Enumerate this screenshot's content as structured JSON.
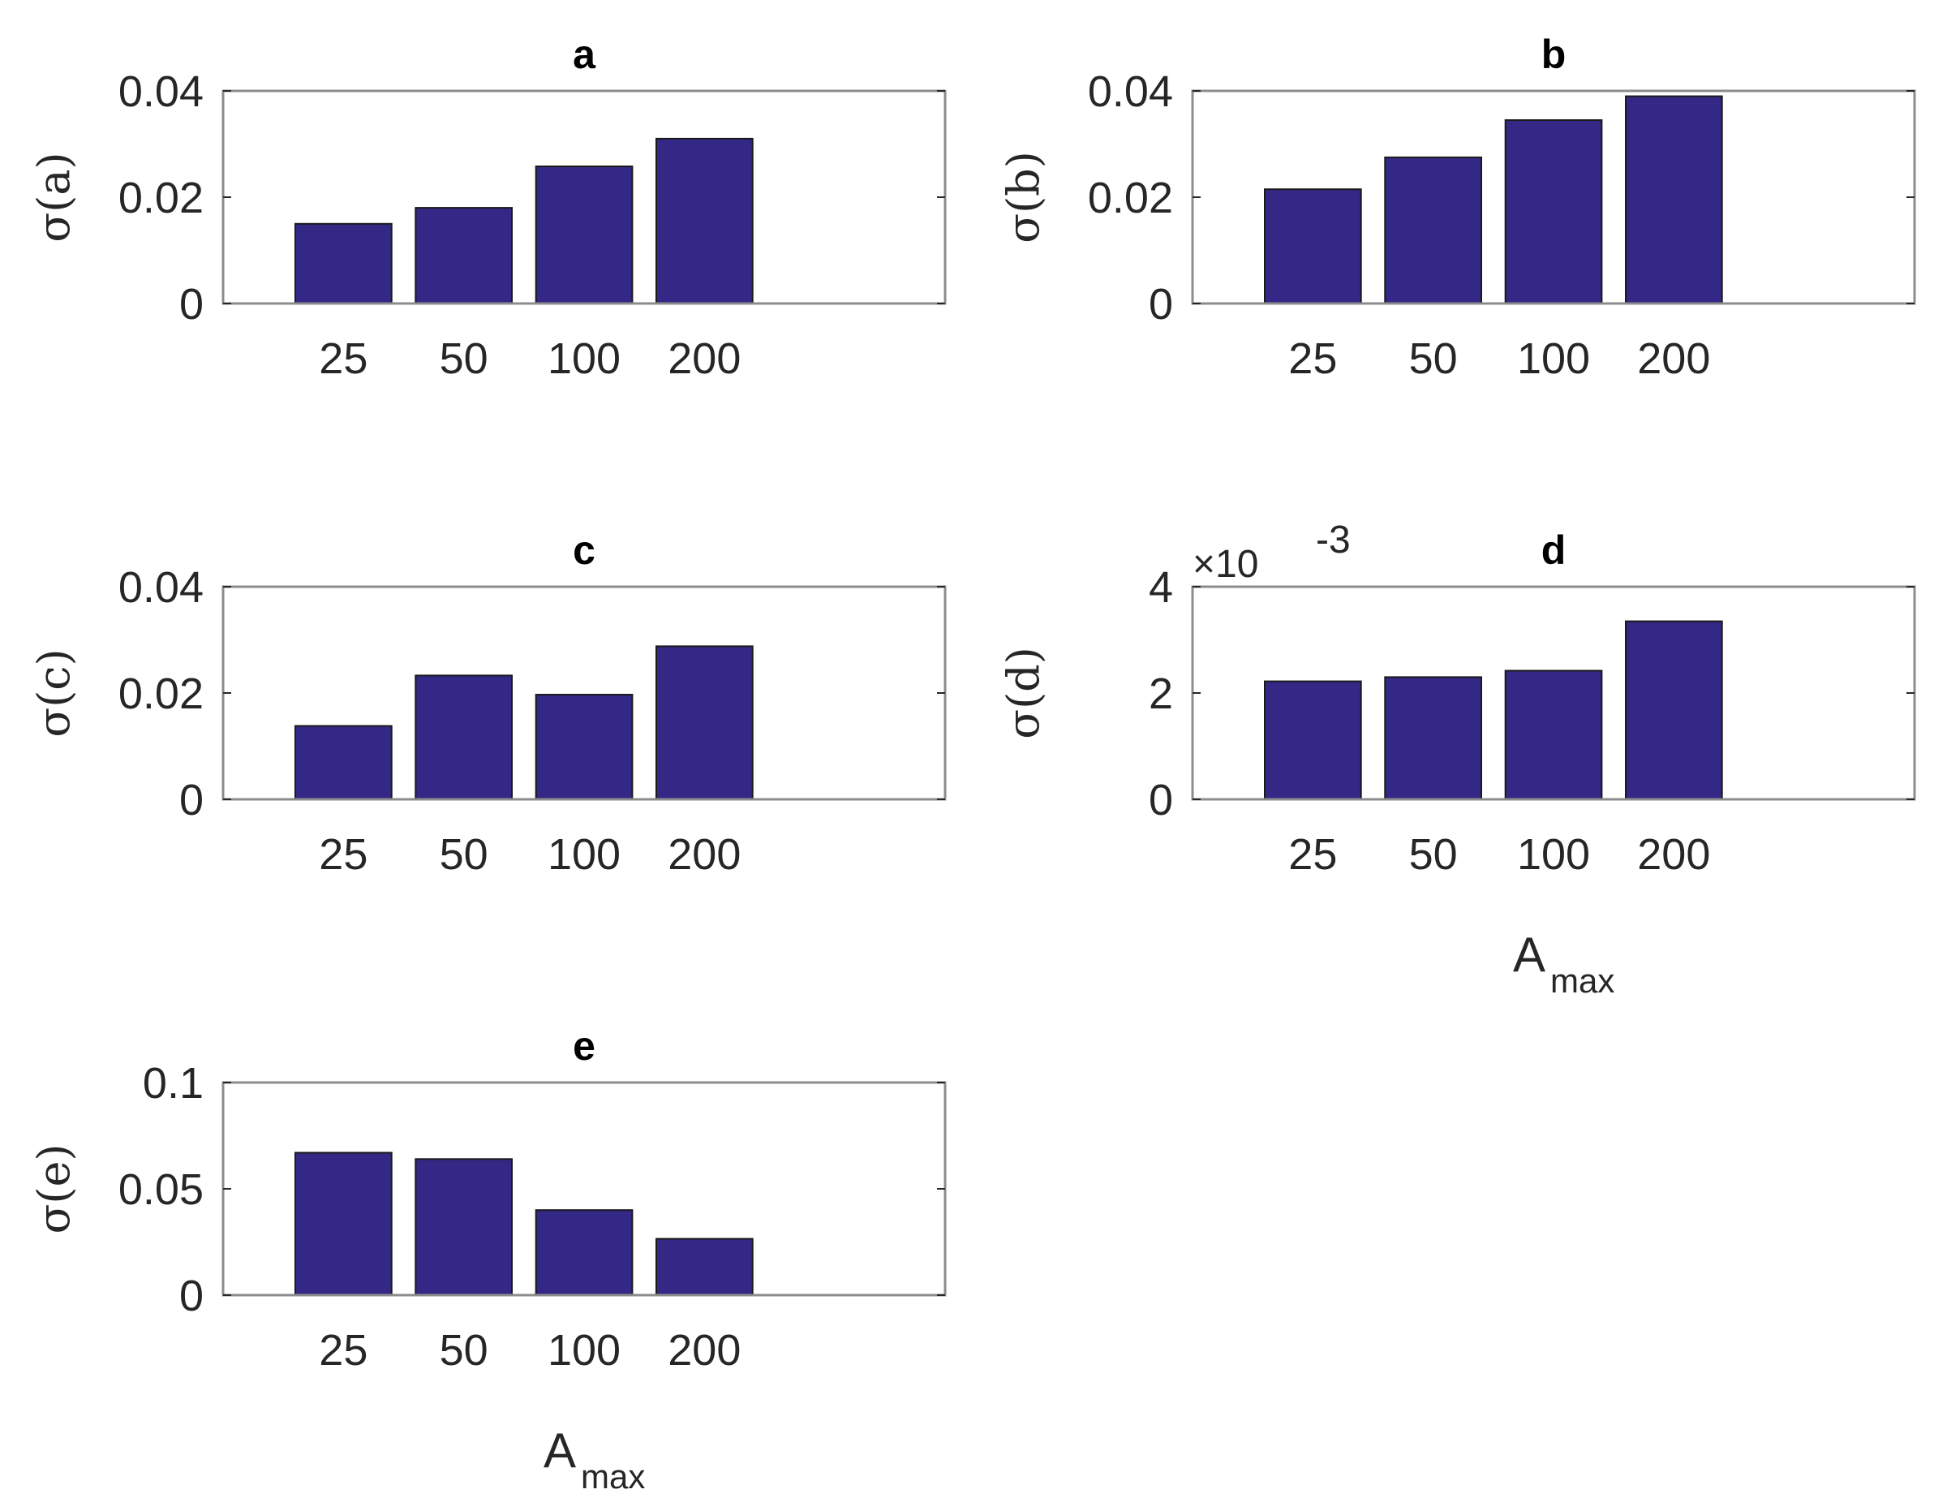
{
  "chart_data": [
    {
      "type": "bar",
      "title": "a",
      "ylabel": "σ(a)",
      "xlabel": "",
      "categories": [
        "25",
        "50",
        "100",
        "200"
      ],
      "values": [
        0.015,
        0.018,
        0.0258,
        0.031
      ],
      "ylim": [
        0,
        0.04
      ],
      "yticks": [
        0,
        0.02,
        0.04
      ],
      "ytick_labels": [
        "0",
        "0.02",
        "0.04"
      ],
      "multiplier": ""
    },
    {
      "type": "bar",
      "title": "b",
      "ylabel": "σ(b)",
      "xlabel": "",
      "categories": [
        "25",
        "50",
        "100",
        "200"
      ],
      "values": [
        0.0215,
        0.0275,
        0.0345,
        0.039
      ],
      "ylim": [
        0,
        0.04
      ],
      "yticks": [
        0,
        0.02,
        0.04
      ],
      "ytick_labels": [
        "0",
        "0.02",
        "0.04"
      ],
      "multiplier": ""
    },
    {
      "type": "bar",
      "title": "c",
      "ylabel": "σ(c)",
      "xlabel": "",
      "categories": [
        "25",
        "50",
        "100",
        "200"
      ],
      "values": [
        0.0138,
        0.0233,
        0.0197,
        0.0288
      ],
      "ylim": [
        0,
        0.04
      ],
      "yticks": [
        0,
        0.02,
        0.04
      ],
      "ytick_labels": [
        "0",
        "0.02",
        "0.04"
      ],
      "multiplier": ""
    },
    {
      "type": "bar",
      "title": "d",
      "ylabel": "σ(d)",
      "xlabel": "A",
      "xlabel_sub": "max",
      "categories": [
        "25",
        "50",
        "100",
        "200"
      ],
      "values": [
        2.22,
        2.3,
        2.42,
        3.35
      ],
      "ylim": [
        0,
        4
      ],
      "yticks": [
        0,
        2,
        4
      ],
      "ytick_labels": [
        "0",
        "2",
        "4"
      ],
      "multiplier": "×10",
      "multiplier_exp": "-3"
    },
    {
      "type": "bar",
      "title": "e",
      "ylabel": "σ(e)",
      "xlabel": "A",
      "xlabel_sub": "max",
      "categories": [
        "25",
        "50",
        "100",
        "200"
      ],
      "values": [
        0.067,
        0.064,
        0.04,
        0.0265
      ],
      "ylim": [
        0,
        0.1
      ],
      "yticks": [
        0,
        0.05,
        0.1
      ],
      "ytick_labels": [
        "0",
        "0.05",
        "0.1"
      ],
      "multiplier": ""
    }
  ]
}
